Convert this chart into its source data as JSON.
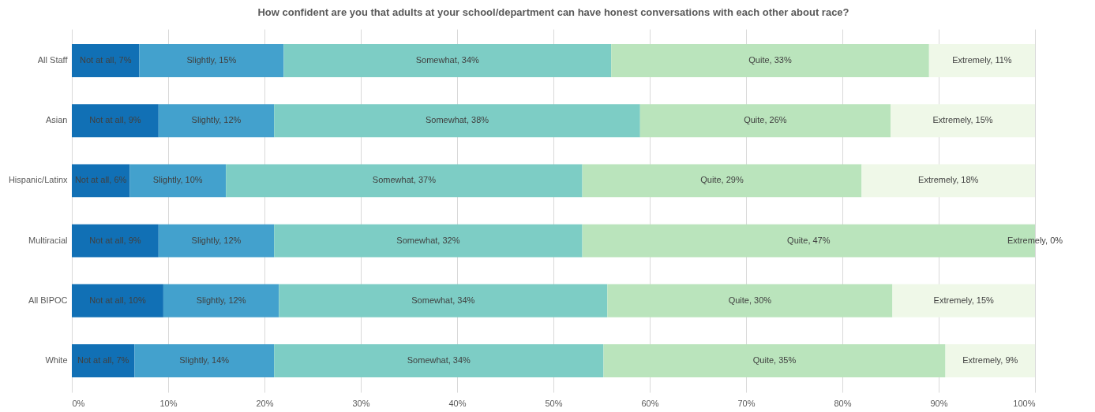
{
  "chart_data": {
    "type": "bar",
    "orientation": "horizontal",
    "stacked": true,
    "title": "How confident are you that adults at your school/department can have honest conversations with each other about race?",
    "categories": [
      "All Staff",
      "Asian",
      "Hispanic/Latinx",
      "Multiracial",
      "All BIPOC",
      "White"
    ],
    "series": [
      {
        "color": "#1170b5",
        "values": [
          7,
          9,
          6,
          9,
          9.5,
          6.5
        ],
        "value_labels": [
          "Not at all, 7%",
          "Not at all, 9%",
          "Not at all, 6%",
          "Not at all, 9%",
          "Not at all, 10%",
          "Not at all, 7%"
        ]
      },
      {
        "color": "#43a1cd",
        "values": [
          15,
          12,
          10,
          12,
          12,
          14.5
        ],
        "value_labels": [
          "Slightly, 15%",
          "Slightly, 12%",
          "Slightly, 10%",
          "Slightly, 12%",
          "Slightly, 12%",
          "Slightly, 14%"
        ]
      },
      {
        "color": "#7dcdc5",
        "values": [
          34,
          38,
          37,
          32,
          34.1,
          34.2
        ],
        "value_labels": [
          "Somewhat, 34%",
          "Somewhat, 38%",
          "Somewhat, 37%",
          "Somewhat, 32%",
          "Somewhat, 34%",
          "Somewhat, 34%"
        ]
      },
      {
        "color": "#bae4bc",
        "values": [
          33,
          26,
          29,
          47,
          29.6,
          35.5
        ],
        "value_labels": [
          "Quite, 33%",
          "Quite, 26%",
          "Quite, 29%",
          "Quite, 47%",
          "Quite, 30%",
          "Quite, 35%"
        ]
      },
      {
        "color": "#eff8e8",
        "values": [
          11,
          15,
          18,
          0,
          14.8,
          9.3
        ],
        "value_labels": [
          "Extremely, 11%",
          "Extremely, 15%",
          "Extremely, 18%",
          "Extremely, 0%",
          "Extremely, 15%",
          "Extremely, 9%"
        ]
      }
    ],
    "xlim": [
      0,
      100
    ],
    "xticks": [
      {
        "value": 0,
        "label": "0%"
      },
      {
        "value": 10,
        "label": "10%"
      },
      {
        "value": 20,
        "label": "20%"
      },
      {
        "value": 30,
        "label": "30%"
      },
      {
        "value": 40,
        "label": "40%"
      },
      {
        "value": 50,
        "label": "50%"
      },
      {
        "value": 60,
        "label": "60%"
      },
      {
        "value": 70,
        "label": "70%"
      },
      {
        "value": 80,
        "label": "80%"
      },
      {
        "value": 90,
        "label": "90%"
      },
      {
        "value": 100,
        "label": "100%"
      }
    ],
    "grid": "x",
    "legend": false
  }
}
